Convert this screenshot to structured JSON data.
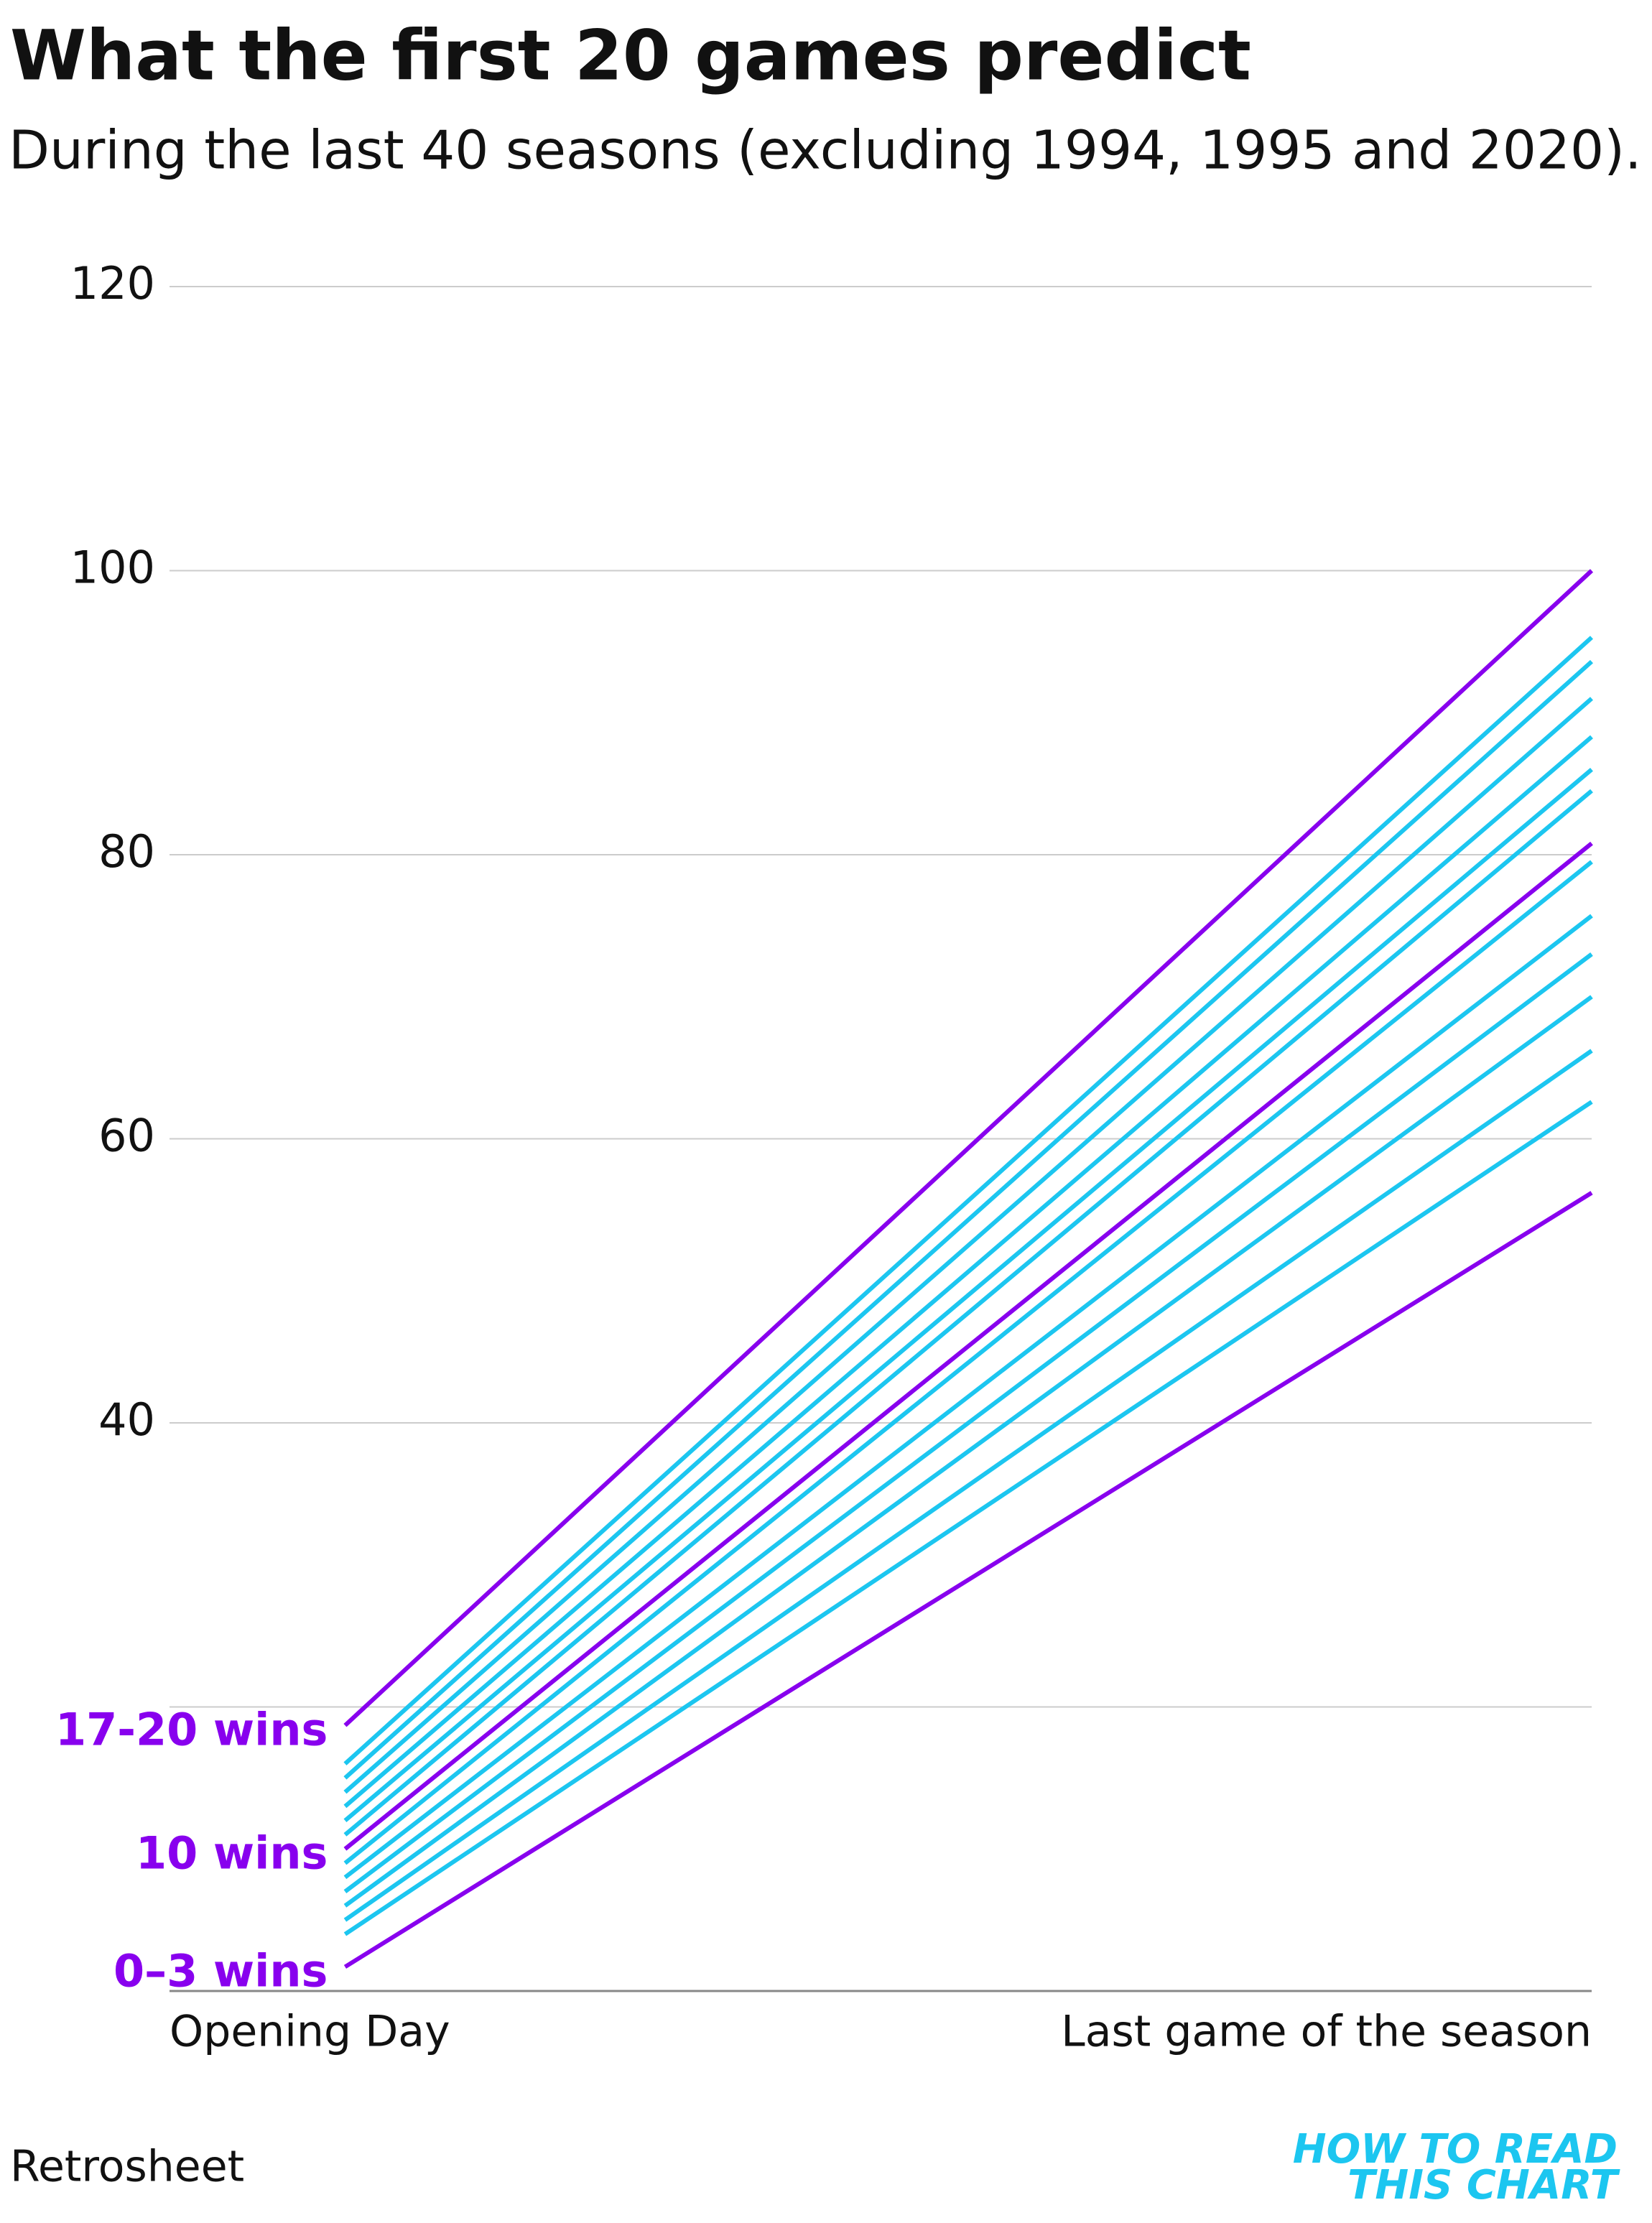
{
  "chart_data": {
    "type": "line",
    "title": "What the first 20 games predict",
    "subtitle": "During the last 40 seasons (excluding 1994, 1995 and 2020).",
    "source": "Retrosheet",
    "logo": [
      "HOW TO READ",
      "THIS CHART"
    ],
    "logo_color": "#1cc6f0",
    "x": [
      20,
      162
    ],
    "xlim": [
      0,
      162
    ],
    "xticks": [
      {
        "value": 0,
        "label": "Opening Day"
      },
      {
        "value": 162,
        "label": "Last game of the season"
      }
    ],
    "ylim": [
      0,
      120
    ],
    "yticks": [
      {
        "value": 0,
        "label": null
      },
      {
        "value": 20,
        "label": null
      },
      40,
      60,
      80,
      100,
      120
    ],
    "grid": true,
    "series": [
      {
        "name": "17-20 wins",
        "color": "#8800ee",
        "values": [
          18.7,
          100
        ]
      },
      {
        "name": null,
        "color": "#1cc6f0",
        "values": [
          16,
          95.3
        ]
      },
      {
        "name": null,
        "color": "#1cc6f0",
        "values": [
          15,
          93.6
        ]
      },
      {
        "name": null,
        "color": "#1cc6f0",
        "values": [
          14,
          91
        ]
      },
      {
        "name": null,
        "color": "#1cc6f0",
        "values": [
          13,
          88.3
        ]
      },
      {
        "name": null,
        "color": "#1cc6f0",
        "values": [
          12,
          86
        ]
      },
      {
        "name": null,
        "color": "#1cc6f0",
        "values": [
          11,
          84.5
        ]
      },
      {
        "name": "10 wins",
        "color": "#8800ee",
        "values": [
          10,
          80.8
        ]
      },
      {
        "name": null,
        "color": "#1cc6f0",
        "values": [
          9,
          79.5
        ]
      },
      {
        "name": null,
        "color": "#1cc6f0",
        "values": [
          8,
          75.7
        ]
      },
      {
        "name": null,
        "color": "#1cc6f0",
        "values": [
          7,
          73
        ]
      },
      {
        "name": null,
        "color": "#1cc6f0",
        "values": [
          6,
          70
        ]
      },
      {
        "name": null,
        "color": "#1cc6f0",
        "values": [
          5,
          66.2
        ]
      },
      {
        "name": null,
        "color": "#1cc6f0",
        "values": [
          4,
          62.6
        ]
      },
      {
        "name": "0–3 wins",
        "color": "#8800ee",
        "values": [
          1.7,
          56.2
        ]
      }
    ]
  }
}
